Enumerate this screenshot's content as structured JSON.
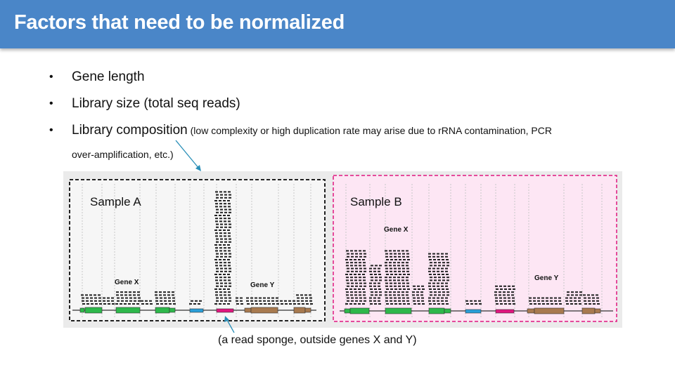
{
  "slide": {
    "title": "Factors that need to be normalized",
    "bullets": [
      {
        "main": "Gene length",
        "note": ""
      },
      {
        "main": "Library size (total seq reads)",
        "note": ""
      },
      {
        "main": "Library composition",
        "note": " (low complexity or high duplication  rate may arise due to rRNA contamination,  PCR"
      }
    ],
    "bullet3_continuation": "over-amplification,  etc.)",
    "caption": "(a read sponge, outside genes X and Y)"
  },
  "figure": {
    "sample_a": {
      "title": "Sample A",
      "gene_x": "Gene X",
      "gene_y": "Gene Y"
    },
    "sample_b": {
      "title": "Sample B",
      "gene_x": "Gene X",
      "gene_y": "Gene Y"
    },
    "colors": {
      "panel_bg": "#ebebeb",
      "sample_b_bg": "#fde6f4",
      "sample_b_border": "#e0177f",
      "green_exon": "#2eb84b",
      "blue_exon": "#2a9ed8",
      "magenta_exon": "#e0177f",
      "brown_exon": "#a87a4f",
      "read": "#222222",
      "header": "#4a86c8"
    }
  }
}
